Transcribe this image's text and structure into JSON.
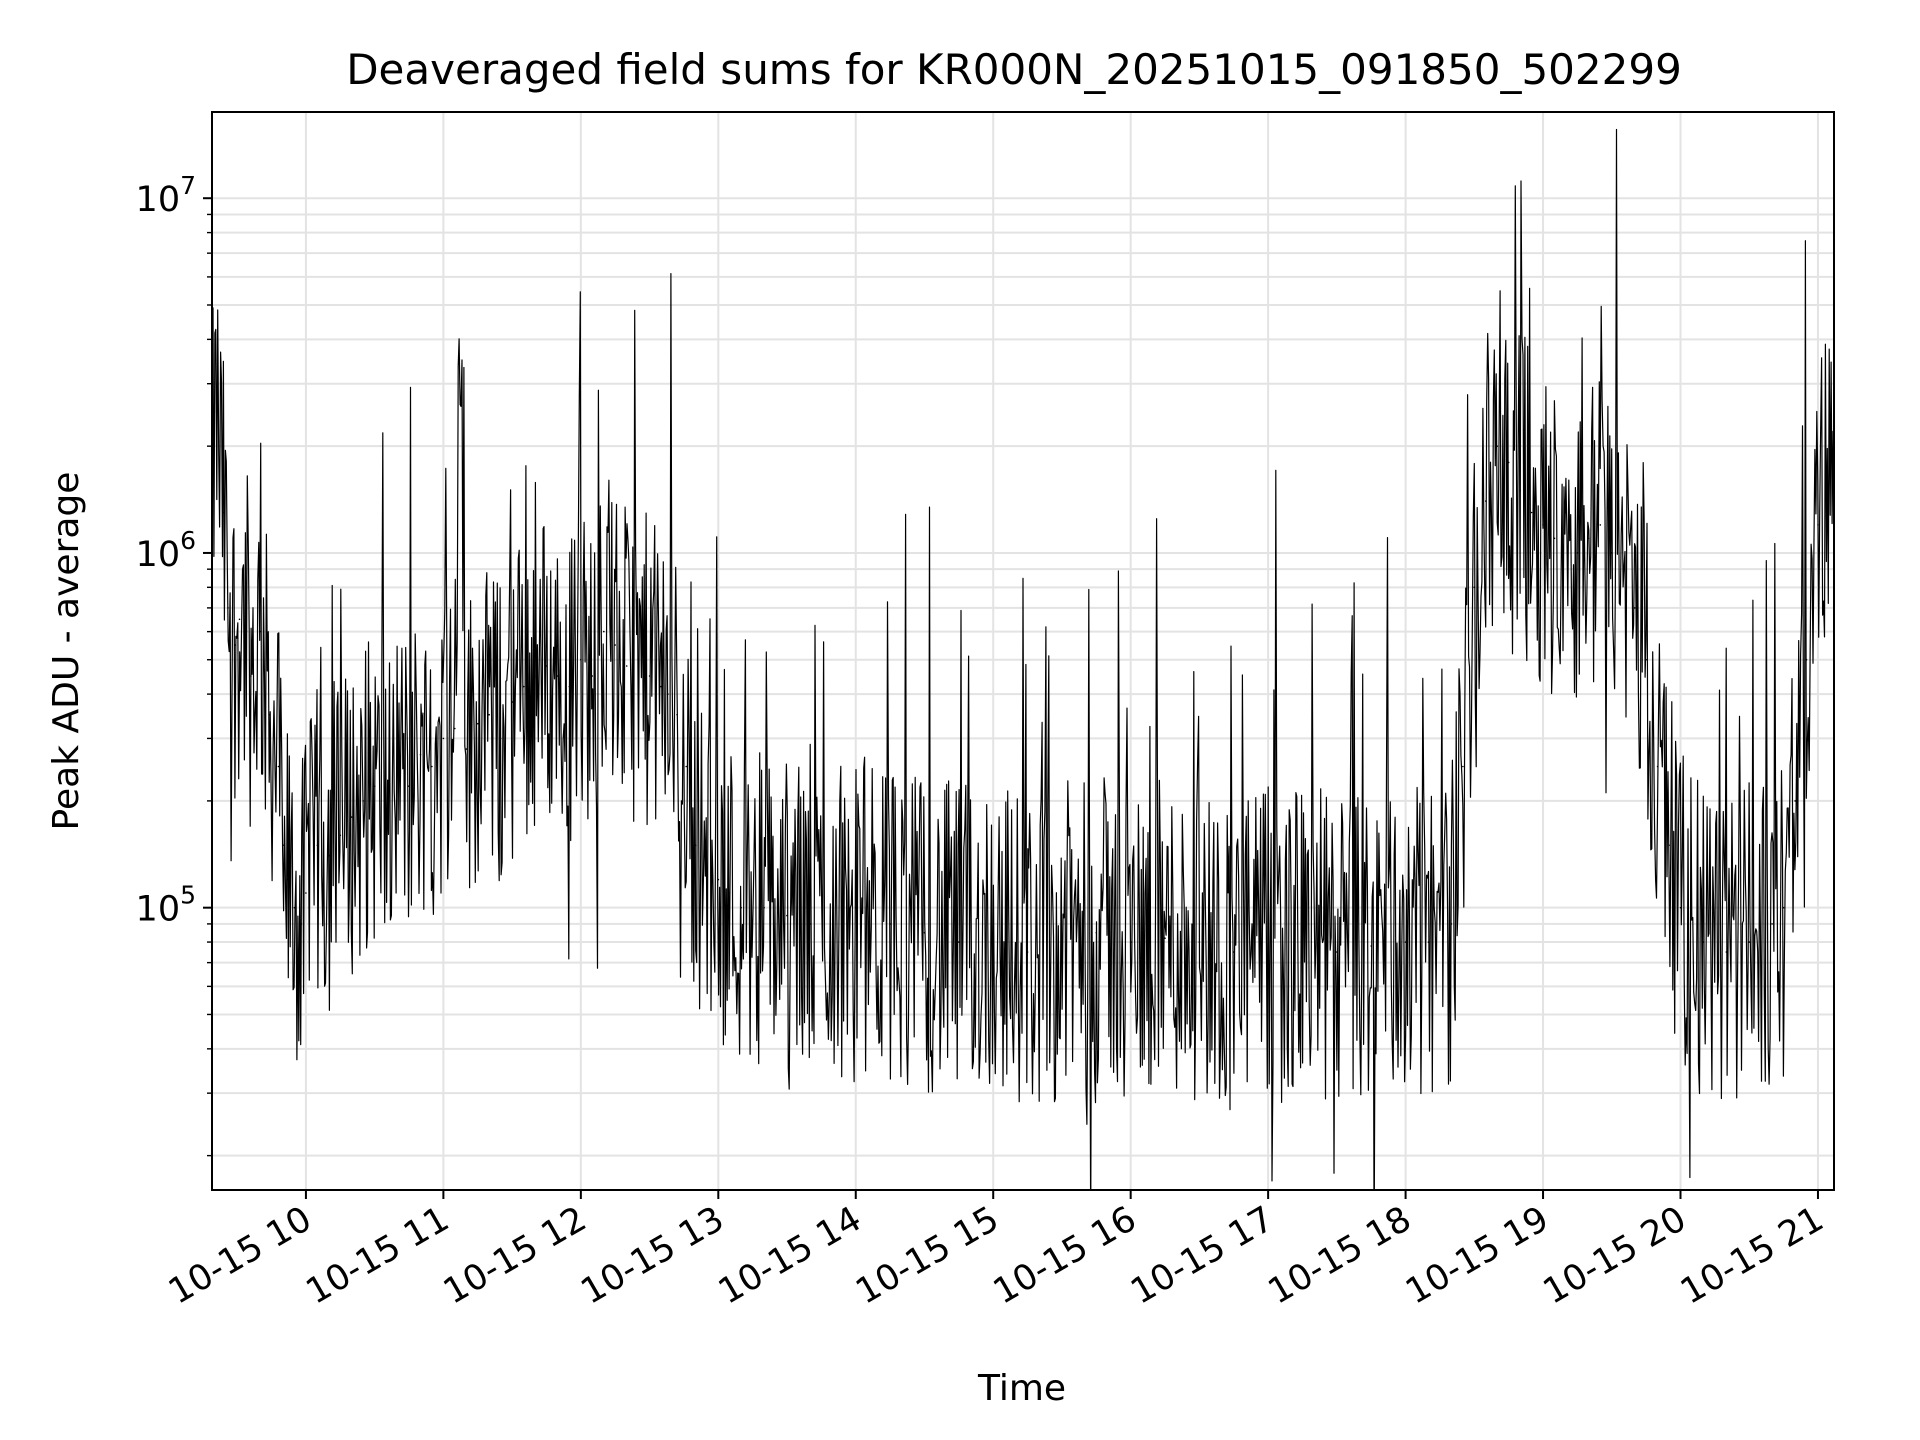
{
  "chart_data": {
    "type": "line",
    "title": "Deaveraged field sums for KR000N_20251015_091850_502299",
    "xlabel": "Time",
    "ylabel": "Peak ADU - average",
    "yscale": "log",
    "ylim": [
      16000,
      17500000
    ],
    "xlim": [
      "2025-10-15 09:19",
      "2025-10-15 21:07"
    ],
    "grid": true,
    "legend": "none",
    "line_color": "#000000",
    "x_ticks": [
      {
        "time": "2025-10-15 10:00",
        "label": "10-15 10"
      },
      {
        "time": "2025-10-15 11:00",
        "label": "10-15 11"
      },
      {
        "time": "2025-10-15 12:00",
        "label": "10-15 12"
      },
      {
        "time": "2025-10-15 13:00",
        "label": "10-15 13"
      },
      {
        "time": "2025-10-15 14:00",
        "label": "10-15 14"
      },
      {
        "time": "2025-10-15 15:00",
        "label": "10-15 15"
      },
      {
        "time": "2025-10-15 16:00",
        "label": "10-15 16"
      },
      {
        "time": "2025-10-15 17:00",
        "label": "10-15 17"
      },
      {
        "time": "2025-10-15 18:00",
        "label": "10-15 18"
      },
      {
        "time": "2025-10-15 19:00",
        "label": "10-15 19"
      },
      {
        "time": "2025-10-15 20:00",
        "label": "10-15 20"
      },
      {
        "time": "2025-10-15 21:00",
        "label": "10-15 21"
      }
    ],
    "y_ticks": [
      {
        "value": 100000,
        "base": "10",
        "exp": "5"
      },
      {
        "value": 1000000,
        "base": "10",
        "exp": "6"
      },
      {
        "value": 10000000,
        "base": "10",
        "exp": "7"
      }
    ],
    "series": [
      {
        "x": [
          "2025-10-15 09:19",
          "2025-10-15 09:21",
          "2025-10-15 09:24",
          "2025-10-15 09:26",
          "2025-10-15 09:29",
          "2025-10-15 09:31",
          "2025-10-15 09:34",
          "2025-10-15 09:36",
          "2025-10-15 09:40",
          "2025-10-15 09:44",
          "2025-10-15 09:48",
          "2025-10-15 09:50",
          "2025-10-15 09:52",
          "2025-10-15 09:55",
          "2025-10-15 09:58",
          "2025-10-15 10:00",
          "2025-10-15 10:05",
          "2025-10-15 10:10",
          "2025-10-15 10:15",
          "2025-10-15 10:20",
          "2025-10-15 10:25",
          "2025-10-15 10:30",
          "2025-10-15 10:35",
          "2025-10-15 10:40",
          "2025-10-15 10:45",
          "2025-10-15 10:50",
          "2025-10-15 10:55",
          "2025-10-15 11:00",
          "2025-10-15 11:05",
          "2025-10-15 11:07",
          "2025-10-15 11:10",
          "2025-10-15 11:15",
          "2025-10-15 11:20",
          "2025-10-15 11:25",
          "2025-10-15 11:30",
          "2025-10-15 11:35",
          "2025-10-15 11:40",
          "2025-10-15 11:45",
          "2025-10-15 11:50",
          "2025-10-15 11:55",
          "2025-10-15 12:00",
          "2025-10-15 12:05",
          "2025-10-15 12:10",
          "2025-10-15 12:15",
          "2025-10-15 12:20",
          "2025-10-15 12:25",
          "2025-10-15 12:30",
          "2025-10-15 12:35",
          "2025-10-15 12:38",
          "2025-10-15 12:42",
          "2025-10-15 12:46",
          "2025-10-15 12:50",
          "2025-10-15 12:55",
          "2025-10-15 13:00",
          "2025-10-15 13:05",
          "2025-10-15 13:10",
          "2025-10-15 13:20",
          "2025-10-15 13:30",
          "2025-10-15 13:40",
          "2025-10-15 13:50",
          "2025-10-15 14:00",
          "2025-10-15 14:15",
          "2025-10-15 14:30",
          "2025-10-15 14:45",
          "2025-10-15 15:00",
          "2025-10-15 15:15",
          "2025-10-15 15:30",
          "2025-10-15 15:45",
          "2025-10-15 16:00",
          "2025-10-15 16:15",
          "2025-10-15 16:30",
          "2025-10-15 16:45",
          "2025-10-15 17:00",
          "2025-10-15 17:15",
          "2025-10-15 17:30",
          "2025-10-15 17:45",
          "2025-10-15 18:00",
          "2025-10-15 18:10",
          "2025-10-15 18:20",
          "2025-10-15 18:25",
          "2025-10-15 18:30",
          "2025-10-15 18:35",
          "2025-10-15 18:40",
          "2025-10-15 18:45",
          "2025-10-15 18:50",
          "2025-10-15 18:55",
          "2025-10-15 19:00",
          "2025-10-15 19:05",
          "2025-10-15 19:10",
          "2025-10-15 19:15",
          "2025-10-15 19:20",
          "2025-10-15 19:25",
          "2025-10-15 19:30",
          "2025-10-15 19:35",
          "2025-10-15 19:40",
          "2025-10-15 19:45",
          "2025-10-15 19:50",
          "2025-10-15 19:55",
          "2025-10-15 20:00",
          "2025-10-15 20:10",
          "2025-10-15 20:20",
          "2025-10-15 20:30",
          "2025-10-15 20:40",
          "2025-10-15 20:45",
          "2025-10-15 20:50",
          "2025-10-15 20:55",
          "2025-10-15 21:00",
          "2025-10-15 21:05",
          "2025-10-15 21:07"
        ],
        "y": [
          1600000,
          2500000,
          1300000,
          700000,
          550000,
          650000,
          600000,
          450000,
          600000,
          350000,
          250000,
          150000,
          120000,
          100000,
          90000,
          110000,
          150000,
          140000,
          160000,
          180000,
          200000,
          220000,
          180000,
          250000,
          220000,
          270000,
          250000,
          300000,
          320000,
          3500000,
          280000,
          330000,
          350000,
          300000,
          380000,
          420000,
          450000,
          480000,
          450000,
          420000,
          500000,
          450000,
          600000,
          550000,
          480000,
          500000,
          450000,
          420000,
          400000,
          350000,
          250000,
          150000,
          130000,
          120000,
          110000,
          100000,
          100000,
          95000,
          90000,
          95000,
          100000,
          90000,
          85000,
          80000,
          85000,
          75000,
          80000,
          85000,
          80000,
          82000,
          80000,
          75000,
          78000,
          80000,
          75000,
          78000,
          80000,
          80000,
          90000,
          250000,
          800000,
          1400000,
          2000000,
          1800000,
          1500000,
          1300000,
          1200000,
          1100000,
          1300000,
          1000000,
          1100000,
          1200000,
          1000000,
          900000,
          700000,
          500000,
          250000,
          150000,
          100000,
          80000,
          75000,
          80000,
          90000,
          100000,
          200000,
          500000,
          1200000,
          1800000,
          1600000
        ]
      }
    ]
  }
}
